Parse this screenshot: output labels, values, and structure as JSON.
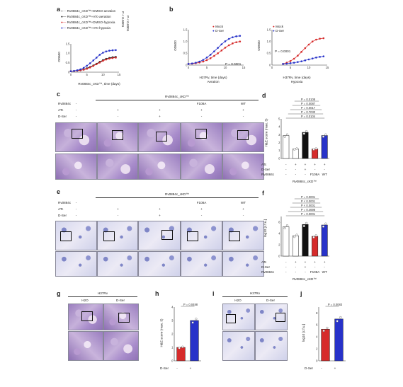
{
  "panels": {
    "a": {
      "letter": "a",
      "legend": [
        {
          "label": "Rv0884c_cKD™+DMSO-aeration",
          "color": "#9a9a9a"
        },
        {
          "label": "Rv0884c_cKD™+ATc-aeration",
          "color": "#111111"
        },
        {
          "label": "Rv0884c_cKD™+DMSO-hypoxia",
          "color": "#d62b2b"
        },
        {
          "label": "Rv0884c_cKD™+ATc-hypoxia",
          "color": "#2732c9"
        }
      ],
      "pvals": [
        "P < 0.0001",
        "P < 0.0001"
      ],
      "ylabel": "OD600",
      "xlabel": "Rv0884c_cKD™, time (days)",
      "xticks": [
        "0",
        "5",
        "10",
        "15"
      ],
      "yticks": [
        "0",
        "0.5",
        "1.0",
        "1.5"
      ]
    },
    "b": {
      "letter": "b",
      "left": {
        "legend": [
          "Mock",
          "D-Ser"
        ],
        "pval": "P = 0.0001",
        "xlabel": "H37Rv, time (days)",
        "xsub": "Aeration",
        "ylabel": "OD600"
      },
      "right": {
        "legend": [
          "Mock",
          "D-Ser"
        ],
        "pval": "P = 0.0001",
        "xlabel": "H37Rv, time (days)",
        "xsub": "Hypoxia",
        "ylabel": "OD600"
      },
      "xticks": [
        "0",
        "5",
        "10",
        "15"
      ],
      "yticks": [
        "0",
        "0.5",
        "1.0",
        "1.5"
      ]
    },
    "c": {
      "letter": "c",
      "title": "Rv0884c_cKD™",
      "rows": [
        "Rv0884c",
        "ATc",
        "D-Ser"
      ],
      "cols": [
        {
          "rv": "-",
          "atc": "-",
          "dser": "-"
        },
        {
          "rv": "",
          "atc": "+",
          "dser": "-"
        },
        {
          "rv": "",
          "atc": "+",
          "dser": "+"
        },
        {
          "rv": "F108A",
          "atc": "+",
          "dser": "-"
        },
        {
          "rv": "WT",
          "atc": "+",
          "dser": "-"
        }
      ]
    },
    "d": {
      "letter": "d",
      "pvals": [
        "P = 0.0104",
        "P = 0.7030",
        "P = 0.0017",
        "P = 0.0087",
        "P = 0.0108"
      ],
      "ylabel": "H&E score (max. 5)",
      "yticks": [
        "0",
        "1",
        "2",
        "3",
        "4",
        "5"
      ],
      "row_labels": [
        "ATc",
        "D-Ser",
        "Rv0884c"
      ],
      "cols": [
        [
          "-",
          "-",
          "-"
        ],
        [
          "+",
          "-",
          "-"
        ],
        [
          "+",
          "+",
          "-"
        ],
        [
          "+",
          "-",
          "F108A"
        ],
        [
          "+",
          "-",
          "WT"
        ]
      ],
      "footer": "Rv0884c_cKD™"
    },
    "e": {
      "letter": "e",
      "title": "Rv0884c_cKD™",
      "rows": [
        "Rv0884c",
        "ATc",
        "D-Ser"
      ],
      "cols": [
        {
          "rv": "-",
          "atc": "-",
          "dser": "-"
        },
        {
          "rv": "",
          "atc": "+",
          "dser": "-"
        },
        {
          "rv": "",
          "atc": "+",
          "dser": "+"
        },
        {
          "rv": "F108A",
          "atc": "+",
          "dser": "-"
        },
        {
          "rv": "WT",
          "atc": "+",
          "dser": "-"
        }
      ]
    },
    "f": {
      "letter": "f",
      "pvals": [
        "P = 0.0001",
        "P = 0.4698",
        "P < 0.0001",
        "P < 0.0001",
        "P = 0.0001"
      ],
      "ylabel": "log10 [c.f.u.]",
      "yticks": [
        "0",
        "2",
        "4",
        "6"
      ],
      "row_labels": [
        "ATc",
        "D-Ser",
        "Rv0884c"
      ],
      "cols": [
        [
          "-",
          "-",
          "-"
        ],
        [
          "+",
          "-",
          "-"
        ],
        [
          "+",
          "+",
          "-"
        ],
        [
          "+",
          "-",
          "F108A"
        ],
        [
          "+",
          "-",
          "WT"
        ]
      ],
      "footer": "Rv0884c_cKD™"
    },
    "g": {
      "letter": "g",
      "title": "H37Rv",
      "cols": [
        "H2O",
        "D-Ser"
      ]
    },
    "h": {
      "letter": "h",
      "pval": "P = 0.0488",
      "ylabel": "H&E score (max. 5)",
      "yticks": [
        "0",
        "1",
        "2",
        "3",
        "4"
      ],
      "row_label": "D-Ser",
      "cols": [
        "-",
        "+"
      ]
    },
    "i": {
      "letter": "i",
      "title": "H37Rv",
      "cols": [
        "H2O",
        "D-Ser"
      ]
    },
    "j": {
      "letter": "j",
      "pval": "P = 0.0083",
      "ylabel": "log10 [c.f.u.]",
      "yticks": [
        "0",
        "2",
        "4",
        "6",
        "8"
      ],
      "row_label": "D-Ser",
      "cols": [
        "-",
        "+"
      ]
    }
  },
  "chart_data": [
    {
      "type": "line",
      "title": "",
      "xlabel": "Rv0884c_cKD™, time (days)",
      "ylabel": "OD600",
      "xlim": [
        0,
        15
      ],
      "ylim": [
        0,
        1.5
      ],
      "series": [
        {
          "name": "Rv0884c_cKD™+DMSO-aeration",
          "color": "#9a9a9a",
          "x": [
            0,
            1,
            2,
            3,
            4,
            5,
            6,
            7,
            8,
            9,
            10,
            11,
            12,
            13,
            14
          ],
          "y": [
            0.05,
            0.06,
            0.08,
            0.11,
            0.15,
            0.21,
            0.28,
            0.36,
            0.45,
            0.55,
            0.64,
            0.71,
            0.76,
            0.8,
            0.82
          ]
        },
        {
          "name": "Rv0884c_cKD™+ATc-aeration",
          "color": "#111111",
          "x": [
            0,
            1,
            2,
            3,
            4,
            5,
            6,
            7,
            8,
            9,
            10,
            11,
            12,
            13,
            14
          ],
          "y": [
            0.05,
            0.06,
            0.08,
            0.1,
            0.14,
            0.2,
            0.27,
            0.35,
            0.44,
            0.54,
            0.63,
            0.7,
            0.75,
            0.78,
            0.8
          ]
        },
        {
          "name": "Rv0884c_cKD™+DMSO-hypoxia",
          "color": "#d62b2b",
          "x": [
            0,
            1,
            2,
            3,
            4,
            5,
            6,
            7,
            8,
            9,
            10,
            11,
            12,
            13,
            14
          ],
          "y": [
            0.05,
            0.06,
            0.08,
            0.1,
            0.13,
            0.18,
            0.25,
            0.33,
            0.42,
            0.51,
            0.6,
            0.67,
            0.72,
            0.75,
            0.77
          ]
        },
        {
          "name": "Rv0884c_cKD™+ATc-hypoxia",
          "color": "#2732c9",
          "x": [
            0,
            1,
            2,
            3,
            4,
            5,
            6,
            7,
            8,
            9,
            10,
            11,
            12,
            13,
            14
          ],
          "y": [
            0.05,
            0.07,
            0.1,
            0.15,
            0.23,
            0.34,
            0.47,
            0.62,
            0.77,
            0.92,
            1.03,
            1.1,
            1.14,
            1.16,
            1.17
          ]
        }
      ]
    },
    {
      "type": "line",
      "title": "Aeration",
      "xlabel": "H37Rv, time (days)",
      "ylabel": "OD600",
      "xlim": [
        0,
        15
      ],
      "ylim": [
        0,
        1.5
      ],
      "series": [
        {
          "name": "Mock",
          "color": "#d62b2b",
          "x": [
            0,
            1,
            2,
            3,
            4,
            5,
            6,
            7,
            8,
            9,
            10,
            11,
            12,
            13,
            14
          ],
          "y": [
            0.05,
            0.06,
            0.08,
            0.11,
            0.15,
            0.21,
            0.29,
            0.39,
            0.5,
            0.62,
            0.74,
            0.84,
            0.92,
            0.97,
            1.0
          ]
        },
        {
          "name": "D-Ser",
          "color": "#2732c9",
          "x": [
            0,
            1,
            2,
            3,
            4,
            5,
            6,
            7,
            8,
            9,
            10,
            11,
            12,
            13,
            14
          ],
          "y": [
            0.05,
            0.07,
            0.1,
            0.15,
            0.22,
            0.32,
            0.44,
            0.58,
            0.73,
            0.88,
            1.01,
            1.11,
            1.18,
            1.22,
            1.24
          ]
        }
      ]
    },
    {
      "type": "line",
      "title": "Hypoxia",
      "xlabel": "H37Rv, time (days)",
      "ylabel": "OD600",
      "xlim": [
        0,
        15
      ],
      "ylim": [
        0,
        1.5
      ],
      "series": [
        {
          "name": "Mock",
          "color": "#d62b2b",
          "x": [
            3,
            4,
            5,
            6,
            7,
            8,
            9,
            10,
            11,
            12,
            13,
            14
          ],
          "y": [
            0.05,
            0.1,
            0.17,
            0.27,
            0.4,
            0.56,
            0.72,
            0.87,
            1.0,
            1.08,
            1.12,
            1.14
          ]
        },
        {
          "name": "D-Ser",
          "color": "#2732c9",
          "x": [
            3,
            4,
            5,
            6,
            7,
            8,
            9,
            10,
            11,
            12,
            13,
            14
          ],
          "y": [
            0.05,
            0.06,
            0.08,
            0.1,
            0.13,
            0.16,
            0.2,
            0.24,
            0.28,
            0.32,
            0.35,
            0.37
          ]
        }
      ]
    },
    {
      "type": "bar",
      "ylabel": "H&E score (max. 5)",
      "ylim": [
        0,
        5
      ],
      "categories": [
        "1",
        "2",
        "3",
        "4",
        "5"
      ],
      "values": [
        2.9,
        1.2,
        3.3,
        1.2,
        2.9
      ],
      "colors": [
        "#ffffff",
        "#ffffff",
        "#111111",
        "#d62b2b",
        "#2732c9"
      ]
    },
    {
      "type": "bar",
      "ylabel": "log10 [c.f.u.]",
      "ylim": [
        0,
        7
      ],
      "categories": [
        "1",
        "2",
        "3",
        "4",
        "5"
      ],
      "values": [
        5.2,
        3.6,
        5.6,
        3.5,
        5.5
      ],
      "colors": [
        "#ffffff",
        "#ffffff",
        "#111111",
        "#d62b2b",
        "#2732c9"
      ]
    },
    {
      "type": "bar",
      "ylabel": "H&E score (max. 5)",
      "ylim": [
        0,
        4
      ],
      "categories": [
        "-",
        "+"
      ],
      "values": [
        1.0,
        3.0
      ],
      "colors": [
        "#d62b2b",
        "#2732c9"
      ]
    },
    {
      "type": "bar",
      "ylabel": "log10 [c.f.u.]",
      "ylim": [
        0,
        9
      ],
      "categories": [
        "-",
        "+"
      ],
      "values": [
        5.3,
        7.0
      ],
      "colors": [
        "#d62b2b",
        "#2732c9"
      ]
    }
  ]
}
